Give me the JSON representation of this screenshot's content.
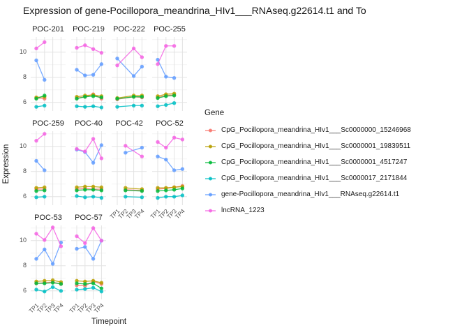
{
  "title": "Expression of gene-Pocillopora_meandrina_HIv1___RNAseq.g22614.t1 and To",
  "axes": {
    "x_title": "Timepoint",
    "y_title": "Expression",
    "x_tick_labels": [
      "TP1",
      "TP2",
      "TP3",
      "TP4"
    ],
    "y_tick_labels": [
      "10",
      "8",
      "6"
    ]
  },
  "legend": {
    "title": "Gene",
    "items": [
      {
        "label": "CpG_Pocillopora_meandrina_HIv1___Sc0000000_15246968",
        "color": "#F8766D"
      },
      {
        "label": "CpG_Pocillopora_meandrina_HIv1___Sc0000001_19839511",
        "color": "#B79F00"
      },
      {
        "label": "CpG_Pocillopora_meandrina_HIv1___Sc0000001_4517247",
        "color": "#00BA38"
      },
      {
        "label": "CpG_Pocillopora_meandrina_HIv1___Sc0000017_2171844",
        "color": "#00BFC4"
      },
      {
        "label": "gene-Pocillopora_meandrina_HIv1___RNAseq.g22614.t1",
        "color": "#619CFF"
      },
      {
        "label": "lncRNA_1223",
        "color": "#F564E3"
      }
    ]
  },
  "style": {
    "grid_major_color": "#E3E3E3",
    "grid_minor_color": "#F0F0F0",
    "axis_text_color": "#4d4d4d"
  },
  "chart_data": {
    "type": "line",
    "title": "Expression of gene-Pocillopora_meandrina_HIv1___RNAseq.g22614.t1 and To",
    "xlabel": "Timepoint",
    "ylabel": "Expression",
    "x": [
      "TP1",
      "TP2",
      "TP3",
      "TP4"
    ],
    "ylim": [
      5.3,
      11.2
    ],
    "y_ticks": [
      6,
      8,
      10
    ],
    "y_minor_ticks": [
      7,
      9,
      11
    ],
    "grid": true,
    "legend_position": "right",
    "facets": [
      {
        "name": "POC-201",
        "series": [
          {
            "name": "CpG_Pocillopora_meandrina_HIv1___Sc0000000_15246968",
            "values": [
              6.35,
              6.3,
              null,
              null
            ]
          },
          {
            "name": "CpG_Pocillopora_meandrina_HIv1___Sc0000001_19839511",
            "values": [
              6.4,
              6.45,
              null,
              null
            ]
          },
          {
            "name": "CpG_Pocillopora_meandrina_HIv1___Sc0000001_4517247",
            "values": [
              6.3,
              6.55,
              null,
              null
            ]
          },
          {
            "name": "CpG_Pocillopora_meandrina_HIv1___Sc0000017_2171844",
            "values": [
              5.65,
              5.75,
              null,
              null
            ]
          },
          {
            "name": "gene-Pocillopora_meandrina_HIv1___RNAseq.g22614.t1",
            "values": [
              9.35,
              7.8,
              null,
              null
            ]
          },
          {
            "name": "lncRNA_1223",
            "values": [
              10.3,
              10.8,
              null,
              null
            ]
          }
        ]
      },
      {
        "name": "POC-219",
        "series": [
          {
            "name": "CpG_Pocillopora_meandrina_HIv1___Sc0000000_15246968",
            "values": [
              6.35,
              6.45,
              6.65,
              6.3
            ]
          },
          {
            "name": "CpG_Pocillopora_meandrina_HIv1___Sc0000001_19839511",
            "values": [
              6.45,
              6.55,
              6.6,
              6.5
            ]
          },
          {
            "name": "CpG_Pocillopora_meandrina_HIv1___Sc0000001_4517247",
            "values": [
              6.3,
              6.45,
              6.5,
              6.4
            ]
          },
          {
            "name": "CpG_Pocillopora_meandrina_HIv1___Sc0000017_2171844",
            "values": [
              5.7,
              5.65,
              5.7,
              5.6
            ]
          },
          {
            "name": "gene-Pocillopora_meandrina_HIv1___RNAseq.g22614.t1",
            "values": [
              8.6,
              8.15,
              8.2,
              9.05
            ]
          },
          {
            "name": "lncRNA_1223",
            "values": [
              10.35,
              10.55,
              10.25,
              9.95
            ]
          }
        ]
      },
      {
        "name": "POC-222",
        "series": [
          {
            "name": "CpG_Pocillopora_meandrina_HIv1___Sc0000000_15246968",
            "values": [
              6.25,
              null,
              6.45,
              6.4
            ]
          },
          {
            "name": "CpG_Pocillopora_meandrina_HIv1___Sc0000001_19839511",
            "values": [
              6.35,
              null,
              6.55,
              6.55
            ]
          },
          {
            "name": "CpG_Pocillopora_meandrina_HIv1___Sc0000001_4517247",
            "values": [
              6.3,
              null,
              6.45,
              6.45
            ]
          },
          {
            "name": "CpG_Pocillopora_meandrina_HIv1___Sc0000017_2171844",
            "values": [
              5.65,
              null,
              5.75,
              5.75
            ]
          },
          {
            "name": "gene-Pocillopora_meandrina_HIv1___RNAseq.g22614.t1",
            "values": [
              9.5,
              null,
              8.1,
              8.85
            ]
          },
          {
            "name": "lncRNA_1223",
            "values": [
              8.95,
              null,
              10.3,
              9.6
            ]
          }
        ]
      },
      {
        "name": "POC-255",
        "series": [
          {
            "name": "CpG_Pocillopora_meandrina_HIv1___Sc0000000_15246968",
            "values": [
              6.4,
              6.55,
              6.6,
              null
            ]
          },
          {
            "name": "CpG_Pocillopora_meandrina_HIv1___Sc0000001_19839511",
            "values": [
              6.5,
              6.65,
              6.7,
              null
            ]
          },
          {
            "name": "CpG_Pocillopora_meandrina_HIv1___Sc0000001_4517247",
            "values": [
              6.35,
              6.5,
              6.55,
              null
            ]
          },
          {
            "name": "CpG_Pocillopora_meandrina_HIv1___Sc0000017_2171844",
            "values": [
              5.7,
              5.8,
              5.95,
              null
            ]
          },
          {
            "name": "gene-Pocillopora_meandrina_HIv1___RNAseq.g22614.t1",
            "values": [
              9.4,
              8.05,
              7.95,
              null
            ]
          },
          {
            "name": "lncRNA_1223",
            "values": [
              9.05,
              10.5,
              10.5,
              null
            ]
          }
        ]
      },
      {
        "name": "POC-259",
        "series": [
          {
            "name": "CpG_Pocillopora_meandrina_HIv1___Sc0000000_15246968",
            "values": [
              6.6,
              6.6,
              null,
              null
            ]
          },
          {
            "name": "CpG_Pocillopora_meandrina_HIv1___Sc0000001_19839511",
            "values": [
              6.7,
              6.75,
              null,
              null
            ]
          },
          {
            "name": "CpG_Pocillopora_meandrina_HIv1___Sc0000001_4517247",
            "values": [
              6.45,
              6.5,
              null,
              null
            ]
          },
          {
            "name": "CpG_Pocillopora_meandrina_HIv1___Sc0000017_2171844",
            "values": [
              5.95,
              6.0,
              null,
              null
            ]
          },
          {
            "name": "gene-Pocillopora_meandrina_HIv1___RNAseq.g22614.t1",
            "values": [
              8.85,
              8.1,
              null,
              null
            ]
          },
          {
            "name": "lncRNA_1223",
            "values": [
              10.45,
              11.0,
              null,
              null
            ]
          }
        ]
      },
      {
        "name": "POC-40",
        "series": [
          {
            "name": "CpG_Pocillopora_meandrina_HIv1___Sc0000000_15246968",
            "values": [
              6.6,
              6.65,
              6.6,
              6.6
            ]
          },
          {
            "name": "CpG_Pocillopora_meandrina_HIv1___Sc0000001_19839511",
            "values": [
              6.75,
              6.8,
              6.8,
              6.75
            ]
          },
          {
            "name": "CpG_Pocillopora_meandrina_HIv1___Sc0000001_4517247",
            "values": [
              6.5,
              6.55,
              6.55,
              6.5
            ]
          },
          {
            "name": "CpG_Pocillopora_meandrina_HIv1___Sc0000017_2171844",
            "values": [
              6.05,
              5.95,
              6.0,
              5.9
            ]
          },
          {
            "name": "gene-Pocillopora_meandrina_HIv1___RNAseq.g22614.t1",
            "values": [
              9.75,
              9.55,
              8.7,
              10.1
            ]
          },
          {
            "name": "lncRNA_1223",
            "values": [
              9.8,
              9.6,
              10.6,
              9.05
            ]
          }
        ]
      },
      {
        "name": "POC-42",
        "series": [
          {
            "name": "CpG_Pocillopora_meandrina_HIv1___Sc0000000_15246968",
            "values": [
              null,
              6.55,
              null,
              6.5
            ]
          },
          {
            "name": "CpG_Pocillopora_meandrina_HIv1___Sc0000001_19839511",
            "values": [
              null,
              6.7,
              null,
              6.6
            ]
          },
          {
            "name": "CpG_Pocillopora_meandrina_HIv1___Sc0000001_4517247",
            "values": [
              null,
              6.5,
              null,
              6.45
            ]
          },
          {
            "name": "CpG_Pocillopora_meandrina_HIv1___Sc0000017_2171844",
            "values": [
              null,
              6.0,
              null,
              5.95
            ]
          },
          {
            "name": "gene-Pocillopora_meandrina_HIv1___RNAseq.g22614.t1",
            "values": [
              null,
              9.5,
              null,
              9.9
            ]
          },
          {
            "name": "lncRNA_1223",
            "values": [
              null,
              10.05,
              null,
              9.2
            ]
          }
        ]
      },
      {
        "name": "POC-52",
        "series": [
          {
            "name": "CpG_Pocillopora_meandrina_HIv1___Sc0000000_15246968",
            "values": [
              6.6,
              6.65,
              6.75,
              6.85
            ]
          },
          {
            "name": "CpG_Pocillopora_meandrina_HIv1___Sc0000001_19839511",
            "values": [
              6.7,
              6.7,
              6.75,
              6.8
            ]
          },
          {
            "name": "CpG_Pocillopora_meandrina_HIv1___Sc0000001_4517247",
            "values": [
              6.45,
              6.5,
              6.55,
              6.65
            ]
          },
          {
            "name": "CpG_Pocillopora_meandrina_HIv1___Sc0000017_2171844",
            "values": [
              5.9,
              6.0,
              6.0,
              6.1
            ]
          },
          {
            "name": "gene-Pocillopora_meandrina_HIv1___RNAseq.g22614.t1",
            "values": [
              9.2,
              8.95,
              8.1,
              8.2
            ]
          },
          {
            "name": "lncRNA_1223",
            "values": [
              10.35,
              9.9,
              10.7,
              10.55
            ]
          }
        ]
      },
      {
        "name": "POC-53",
        "series": [
          {
            "name": "CpG_Pocillopora_meandrina_HIv1___Sc0000000_15246968",
            "values": [
              6.6,
              6.65,
              6.7,
              6.55
            ]
          },
          {
            "name": "CpG_Pocillopora_meandrina_HIv1___Sc0000001_19839511",
            "values": [
              6.75,
              6.8,
              6.85,
              6.7
            ]
          },
          {
            "name": "CpG_Pocillopora_meandrina_HIv1___Sc0000001_4517247",
            "values": [
              6.6,
              6.6,
              6.65,
              6.55
            ]
          },
          {
            "name": "CpG_Pocillopora_meandrina_HIv1___Sc0000017_2171844",
            "values": [
              6.1,
              5.95,
              6.3,
              6.0
            ]
          },
          {
            "name": "gene-Pocillopora_meandrina_HIv1___RNAseq.g22614.t1",
            "values": [
              8.55,
              9.3,
              8.15,
              9.85
            ]
          },
          {
            "name": "lncRNA_1223",
            "values": [
              10.55,
              10.05,
              11.05,
              9.55
            ]
          }
        ]
      },
      {
        "name": "POC-57",
        "series": [
          {
            "name": "CpG_Pocillopora_meandrina_HIv1___Sc0000000_15246968",
            "values": [
              6.45,
              6.4,
              6.75,
              6.55
            ]
          },
          {
            "name": "CpG_Pocillopora_meandrina_HIv1___Sc0000001_19839511",
            "values": [
              6.8,
              6.75,
              6.8,
              6.65
            ]
          },
          {
            "name": "CpG_Pocillopora_meandrina_HIv1___Sc0000001_4517247",
            "values": [
              6.6,
              6.55,
              6.6,
              6.2
            ]
          },
          {
            "name": "CpG_Pocillopora_meandrina_HIv1___Sc0000017_2171844",
            "values": [
              6.1,
              6.15,
              6.25,
              5.95
            ]
          },
          {
            "name": "gene-Pocillopora_meandrina_HIv1___RNAseq.g22614.t1",
            "values": [
              9.35,
              9.5,
              8.55,
              10.0
            ]
          },
          {
            "name": "lncRNA_1223",
            "values": [
              10.35,
              9.8,
              11.0,
              10.0
            ]
          }
        ]
      }
    ]
  }
}
